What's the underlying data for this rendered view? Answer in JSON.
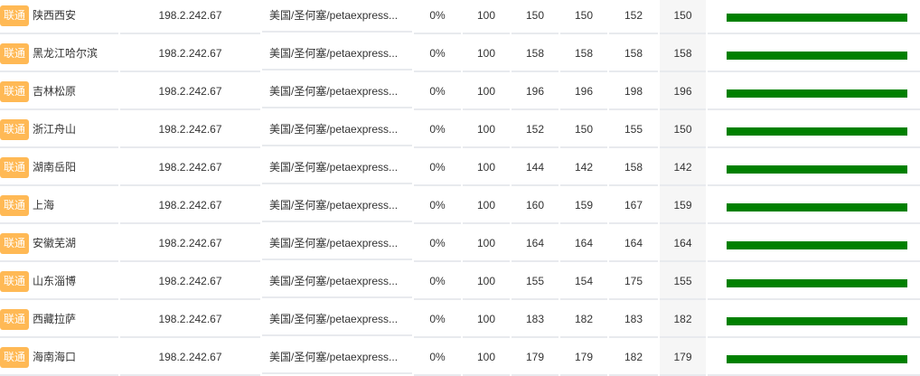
{
  "colors": {
    "badge": "#ffb955",
    "bar": "#008000"
  },
  "rows": [
    {
      "isp": "联通",
      "node": "陕西西安",
      "ip": "198.2.242.67",
      "location": "美国/圣何塞/petaexpress...",
      "loss": "0%",
      "sent": "100",
      "last": "150",
      "best": "150",
      "worst": "152",
      "avg": "150"
    },
    {
      "isp": "联通",
      "node": "黑龙江哈尔滨",
      "ip": "198.2.242.67",
      "location": "美国/圣何塞/petaexpress...",
      "loss": "0%",
      "sent": "100",
      "last": "158",
      "best": "158",
      "worst": "158",
      "avg": "158"
    },
    {
      "isp": "联通",
      "node": "吉林松原",
      "ip": "198.2.242.67",
      "location": "美国/圣何塞/petaexpress...",
      "loss": "0%",
      "sent": "100",
      "last": "196",
      "best": "196",
      "worst": "198",
      "avg": "196"
    },
    {
      "isp": "联通",
      "node": "浙江舟山",
      "ip": "198.2.242.67",
      "location": "美国/圣何塞/petaexpress...",
      "loss": "0%",
      "sent": "100",
      "last": "152",
      "best": "150",
      "worst": "155",
      "avg": "150"
    },
    {
      "isp": "联通",
      "node": "湖南岳阳",
      "ip": "198.2.242.67",
      "location": "美国/圣何塞/petaexpress...",
      "loss": "0%",
      "sent": "100",
      "last": "144",
      "best": "142",
      "worst": "158",
      "avg": "142"
    },
    {
      "isp": "联通",
      "node": "上海",
      "ip": "198.2.242.67",
      "location": "美国/圣何塞/petaexpress...",
      "loss": "0%",
      "sent": "100",
      "last": "160",
      "best": "159",
      "worst": "167",
      "avg": "159"
    },
    {
      "isp": "联通",
      "node": "安徽芜湖",
      "ip": "198.2.242.67",
      "location": "美国/圣何塞/petaexpress...",
      "loss": "0%",
      "sent": "100",
      "last": "164",
      "best": "164",
      "worst": "164",
      "avg": "164"
    },
    {
      "isp": "联通",
      "node": "山东淄博",
      "ip": "198.2.242.67",
      "location": "美国/圣何塞/petaexpress...",
      "loss": "0%",
      "sent": "100",
      "last": "155",
      "best": "154",
      "worst": "175",
      "avg": "155"
    },
    {
      "isp": "联通",
      "node": "西藏拉萨",
      "ip": "198.2.242.67",
      "location": "美国/圣何塞/petaexpress...",
      "loss": "0%",
      "sent": "100",
      "last": "183",
      "best": "182",
      "worst": "183",
      "avg": "182"
    },
    {
      "isp": "联通",
      "node": "海南海口",
      "ip": "198.2.242.67",
      "location": "美国/圣何塞/petaexpress...",
      "loss": "0%",
      "sent": "100",
      "last": "179",
      "best": "179",
      "worst": "182",
      "avg": "179"
    }
  ]
}
